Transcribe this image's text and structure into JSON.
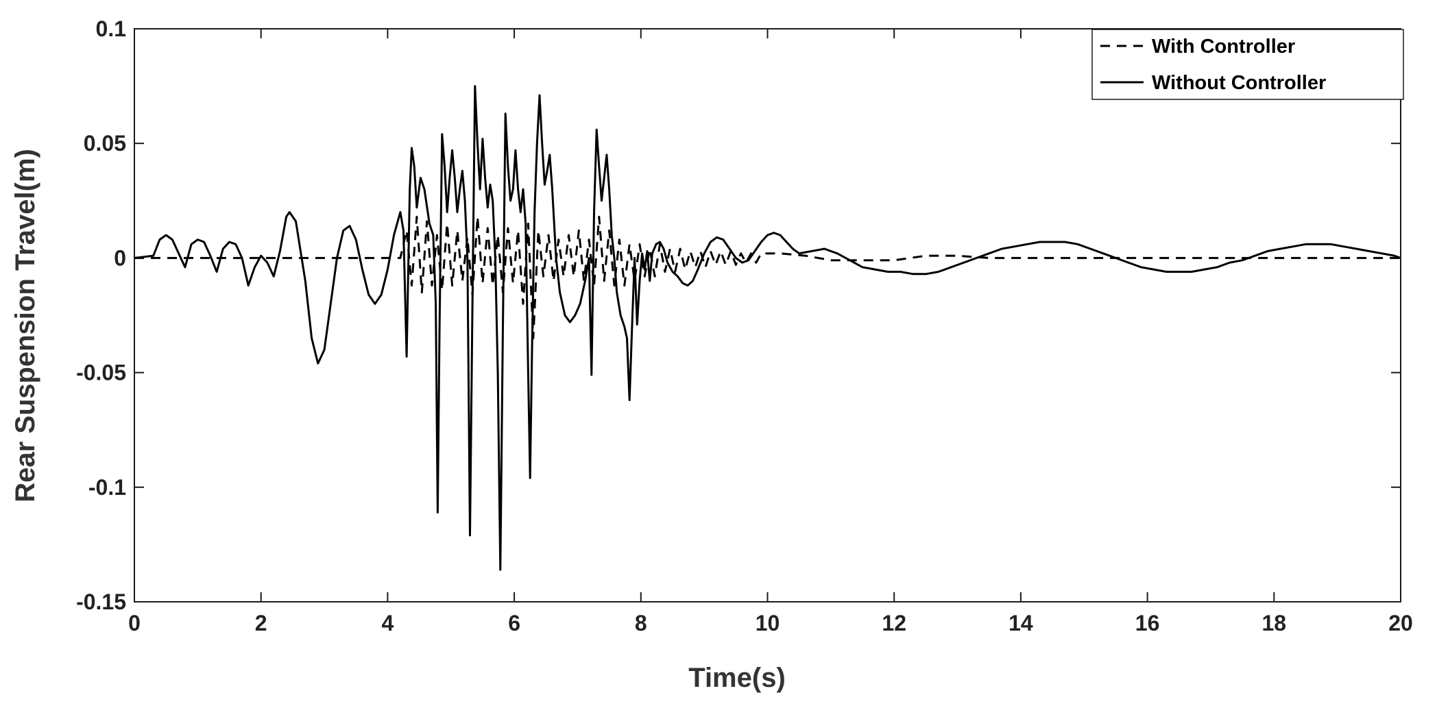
{
  "chart_data": {
    "type": "line",
    "xlabel": "Time(s)",
    "ylabel": "Rear Suspension Travel(m)",
    "xlim": [
      0,
      20
    ],
    "ylim": [
      -0.15,
      0.1
    ],
    "x_ticks": [
      "0",
      "2",
      "4",
      "6",
      "8",
      "10",
      "12",
      "14",
      "16",
      "18",
      "20"
    ],
    "y_ticks": [
      "0.1",
      "0.05",
      "0",
      "-0.05",
      "-0.1",
      "-0.15"
    ],
    "grid": false,
    "legend_position": "top-right",
    "series": [
      {
        "name": "With Controller",
        "style": "dashed",
        "color": "#000000",
        "points": [
          [
            0,
            0
          ],
          [
            0.5,
            0
          ],
          [
            1,
            0
          ],
          [
            1.5,
            0
          ],
          [
            2,
            0
          ],
          [
            2.5,
            0
          ],
          [
            3,
            0
          ],
          [
            3.5,
            0
          ],
          [
            4,
            0
          ],
          [
            4.2,
            0
          ],
          [
            4.3,
            0.012
          ],
          [
            4.38,
            -0.012
          ],
          [
            4.46,
            0.018
          ],
          [
            4.54,
            -0.015
          ],
          [
            4.62,
            0.016
          ],
          [
            4.7,
            -0.012
          ],
          [
            4.78,
            0.01
          ],
          [
            4.86,
            -0.014
          ],
          [
            4.94,
            0.015
          ],
          [
            5.02,
            -0.012
          ],
          [
            5.1,
            0.012
          ],
          [
            5.18,
            -0.01
          ],
          [
            5.26,
            0.009
          ],
          [
            5.34,
            -0.016
          ],
          [
            5.42,
            0.018
          ],
          [
            5.5,
            -0.011
          ],
          [
            5.58,
            0.013
          ],
          [
            5.66,
            -0.012
          ],
          [
            5.74,
            0.01
          ],
          [
            5.82,
            -0.015
          ],
          [
            5.9,
            0.013
          ],
          [
            5.98,
            -0.011
          ],
          [
            6.06,
            0.012
          ],
          [
            6.14,
            -0.02
          ],
          [
            6.22,
            0.015
          ],
          [
            6.3,
            -0.035
          ],
          [
            6.38,
            0.012
          ],
          [
            6.46,
            -0.008
          ],
          [
            6.54,
            0.01
          ],
          [
            6.62,
            -0.01
          ],
          [
            6.7,
            0.008
          ],
          [
            6.78,
            -0.008
          ],
          [
            6.86,
            0.01
          ],
          [
            6.94,
            -0.008
          ],
          [
            7.02,
            0.012
          ],
          [
            7.1,
            -0.01
          ],
          [
            7.18,
            0.008
          ],
          [
            7.26,
            -0.012
          ],
          [
            7.34,
            0.018
          ],
          [
            7.42,
            -0.01
          ],
          [
            7.5,
            0.012
          ],
          [
            7.58,
            -0.012
          ],
          [
            7.66,
            0.008
          ],
          [
            7.74,
            -0.012
          ],
          [
            7.82,
            0.006
          ],
          [
            7.9,
            -0.01
          ],
          [
            7.98,
            0.006
          ],
          [
            8.06,
            -0.008
          ],
          [
            8.14,
            0.004
          ],
          [
            8.22,
            -0.008
          ],
          [
            8.3,
            0.006
          ],
          [
            8.38,
            -0.006
          ],
          [
            8.46,
            0.004
          ],
          [
            8.54,
            -0.006
          ],
          [
            8.62,
            0.004
          ],
          [
            8.7,
            -0.005
          ],
          [
            8.78,
            0.003
          ],
          [
            8.86,
            -0.004
          ],
          [
            8.94,
            0.003
          ],
          [
            9.02,
            -0.004
          ],
          [
            9.1,
            0.003
          ],
          [
            9.18,
            -0.003
          ],
          [
            9.26,
            0.003
          ],
          [
            9.34,
            -0.003
          ],
          [
            9.42,
            0.003
          ],
          [
            9.5,
            -0.003
          ],
          [
            9.58,
            0.002
          ],
          [
            9.66,
            -0.002
          ],
          [
            9.74,
            0.002
          ],
          [
            9.82,
            -0.002
          ],
          [
            9.9,
            0.002
          ],
          [
            10.2,
            0.002
          ],
          [
            10.6,
            0.001
          ],
          [
            11,
            -0.001
          ],
          [
            11.5,
            -0.001
          ],
          [
            12,
            -0.001
          ],
          [
            12.5,
            0.001
          ],
          [
            13,
            0.001
          ],
          [
            13.5,
            0
          ],
          [
            14,
            0
          ],
          [
            15,
            0
          ],
          [
            16,
            0
          ],
          [
            17,
            0
          ],
          [
            18,
            0
          ],
          [
            19,
            0
          ],
          [
            20,
            0
          ]
        ]
      },
      {
        "name": "Without Controller",
        "style": "solid",
        "color": "#000000",
        "points": [
          [
            0,
            0
          ],
          [
            0.3,
            0.001
          ],
          [
            0.4,
            0.008
          ],
          [
            0.5,
            0.01
          ],
          [
            0.6,
            0.008
          ],
          [
            0.7,
            0.002
          ],
          [
            0.8,
            -0.004
          ],
          [
            0.9,
            0.006
          ],
          [
            1.0,
            0.008
          ],
          [
            1.1,
            0.007
          ],
          [
            1.2,
            0.001
          ],
          [
            1.3,
            -0.006
          ],
          [
            1.4,
            0.004
          ],
          [
            1.5,
            0.007
          ],
          [
            1.6,
            0.006
          ],
          [
            1.7,
            0.0
          ],
          [
            1.8,
            -0.012
          ],
          [
            1.9,
            -0.004
          ],
          [
            2.0,
            0.001
          ],
          [
            2.1,
            -0.002
          ],
          [
            2.2,
            -0.008
          ],
          [
            2.3,
            0.003
          ],
          [
            2.4,
            0.018
          ],
          [
            2.45,
            0.02
          ],
          [
            2.55,
            0.016
          ],
          [
            2.7,
            -0.01
          ],
          [
            2.8,
            -0.035
          ],
          [
            2.9,
            -0.046
          ],
          [
            3.0,
            -0.04
          ],
          [
            3.1,
            -0.02
          ],
          [
            3.2,
            0.0
          ],
          [
            3.3,
            0.012
          ],
          [
            3.4,
            0.014
          ],
          [
            3.5,
            0.008
          ],
          [
            3.6,
            -0.005
          ],
          [
            3.7,
            -0.016
          ],
          [
            3.8,
            -0.02
          ],
          [
            3.9,
            -0.016
          ],
          [
            4.0,
            -0.005
          ],
          [
            4.1,
            0.01
          ],
          [
            4.2,
            0.02
          ],
          [
            4.25,
            0.012
          ],
          [
            4.3,
            -0.043
          ],
          [
            4.35,
            0.03
          ],
          [
            4.38,
            0.048
          ],
          [
            4.42,
            0.04
          ],
          [
            4.46,
            0.022
          ],
          [
            4.52,
            0.035
          ],
          [
            4.58,
            0.03
          ],
          [
            4.66,
            0.015
          ],
          [
            4.72,
            0.01
          ],
          [
            4.76,
            -0.02
          ],
          [
            4.79,
            -0.111
          ],
          [
            4.82,
            -0.03
          ],
          [
            4.86,
            0.054
          ],
          [
            4.9,
            0.04
          ],
          [
            4.94,
            0.02
          ],
          [
            4.98,
            0.035
          ],
          [
            5.02,
            0.047
          ],
          [
            5.06,
            0.035
          ],
          [
            5.1,
            0.02
          ],
          [
            5.14,
            0.03
          ],
          [
            5.18,
            0.038
          ],
          [
            5.22,
            0.025
          ],
          [
            5.26,
            0.0
          ],
          [
            5.3,
            -0.121
          ],
          [
            5.34,
            -0.02
          ],
          [
            5.38,
            0.075
          ],
          [
            5.42,
            0.05
          ],
          [
            5.46,
            0.03
          ],
          [
            5.5,
            0.052
          ],
          [
            5.54,
            0.035
          ],
          [
            5.58,
            0.022
          ],
          [
            5.62,
            0.032
          ],
          [
            5.66,
            0.025
          ],
          [
            5.7,
            0.0
          ],
          [
            5.74,
            -0.05
          ],
          [
            5.78,
            -0.136
          ],
          [
            5.82,
            -0.03
          ],
          [
            5.86,
            0.063
          ],
          [
            5.9,
            0.04
          ],
          [
            5.94,
            0.025
          ],
          [
            5.98,
            0.03
          ],
          [
            6.02,
            0.047
          ],
          [
            6.06,
            0.03
          ],
          [
            6.1,
            0.02
          ],
          [
            6.14,
            0.03
          ],
          [
            6.18,
            0.015
          ],
          [
            6.22,
            -0.05
          ],
          [
            6.25,
            -0.096
          ],
          [
            6.28,
            -0.04
          ],
          [
            6.32,
            0.02
          ],
          [
            6.36,
            0.05
          ],
          [
            6.4,
            0.071
          ],
          [
            6.44,
            0.05
          ],
          [
            6.48,
            0.032
          ],
          [
            6.52,
            0.038
          ],
          [
            6.56,
            0.045
          ],
          [
            6.6,
            0.03
          ],
          [
            6.66,
            0.0
          ],
          [
            6.72,
            -0.015
          ],
          [
            6.8,
            -0.025
          ],
          [
            6.88,
            -0.028
          ],
          [
            6.96,
            -0.025
          ],
          [
            7.04,
            -0.02
          ],
          [
            7.12,
            -0.01
          ],
          [
            7.18,
            0.0
          ],
          [
            7.22,
            -0.051
          ],
          [
            7.26,
            0.02
          ],
          [
            7.3,
            0.056
          ],
          [
            7.34,
            0.04
          ],
          [
            7.38,
            0.025
          ],
          [
            7.42,
            0.035
          ],
          [
            7.46,
            0.045
          ],
          [
            7.5,
            0.03
          ],
          [
            7.54,
            0.01
          ],
          [
            7.58,
            0.0
          ],
          [
            7.62,
            -0.015
          ],
          [
            7.68,
            -0.025
          ],
          [
            7.74,
            -0.03
          ],
          [
            7.78,
            -0.035
          ],
          [
            7.82,
            -0.062
          ],
          [
            7.86,
            -0.03
          ],
          [
            7.9,
            0.0
          ],
          [
            7.94,
            -0.029
          ],
          [
            7.98,
            -0.01
          ],
          [
            8.02,
            0.002
          ],
          [
            8.06,
            -0.005
          ],
          [
            8.1,
            0.003
          ],
          [
            8.14,
            -0.01
          ],
          [
            8.18,
            0.002
          ],
          [
            8.24,
            0.006
          ],
          [
            8.3,
            0.007
          ],
          [
            8.36,
            0.004
          ],
          [
            8.42,
            -0.002
          ],
          [
            8.5,
            -0.006
          ],
          [
            8.58,
            -0.008
          ],
          [
            8.66,
            -0.011
          ],
          [
            8.74,
            -0.012
          ],
          [
            8.82,
            -0.01
          ],
          [
            8.9,
            -0.005
          ],
          [
            9.0,
            0.002
          ],
          [
            9.1,
            0.007
          ],
          [
            9.2,
            0.009
          ],
          [
            9.3,
            0.008
          ],
          [
            9.4,
            0.004
          ],
          [
            9.5,
            0.0
          ],
          [
            9.6,
            -0.002
          ],
          [
            9.7,
            -0.001
          ],
          [
            9.8,
            0.003
          ],
          [
            9.9,
            0.007
          ],
          [
            10.0,
            0.01
          ],
          [
            10.1,
            0.011
          ],
          [
            10.2,
            0.01
          ],
          [
            10.3,
            0.007
          ],
          [
            10.4,
            0.004
          ],
          [
            10.5,
            0.002
          ],
          [
            10.7,
            0.003
          ],
          [
            10.9,
            0.004
          ],
          [
            11.1,
            0.002
          ],
          [
            11.3,
            -0.001
          ],
          [
            11.5,
            -0.004
          ],
          [
            11.7,
            -0.005
          ],
          [
            11.9,
            -0.006
          ],
          [
            12.1,
            -0.006
          ],
          [
            12.3,
            -0.007
          ],
          [
            12.5,
            -0.007
          ],
          [
            12.7,
            -0.006
          ],
          [
            12.9,
            -0.004
          ],
          [
            13.1,
            -0.002
          ],
          [
            13.3,
            0.0
          ],
          [
            13.5,
            0.002
          ],
          [
            13.7,
            0.004
          ],
          [
            13.9,
            0.005
          ],
          [
            14.1,
            0.006
          ],
          [
            14.3,
            0.007
          ],
          [
            14.5,
            0.007
          ],
          [
            14.7,
            0.007
          ],
          [
            14.9,
            0.006
          ],
          [
            15.1,
            0.004
          ],
          [
            15.3,
            0.002
          ],
          [
            15.5,
            0.0
          ],
          [
            15.7,
            -0.002
          ],
          [
            15.9,
            -0.004
          ],
          [
            16.1,
            -0.005
          ],
          [
            16.3,
            -0.006
          ],
          [
            16.5,
            -0.006
          ],
          [
            16.7,
            -0.006
          ],
          [
            16.9,
            -0.005
          ],
          [
            17.1,
            -0.004
          ],
          [
            17.3,
            -0.002
          ],
          [
            17.5,
            -0.001
          ],
          [
            17.7,
            0.001
          ],
          [
            17.9,
            0.003
          ],
          [
            18.1,
            0.004
          ],
          [
            18.3,
            0.005
          ],
          [
            18.5,
            0.006
          ],
          [
            18.7,
            0.006
          ],
          [
            18.9,
            0.006
          ],
          [
            19.1,
            0.005
          ],
          [
            19.3,
            0.004
          ],
          [
            19.5,
            0.003
          ],
          [
            19.7,
            0.002
          ],
          [
            19.9,
            0.001
          ],
          [
            20.0,
            0.0
          ]
        ]
      }
    ]
  }
}
